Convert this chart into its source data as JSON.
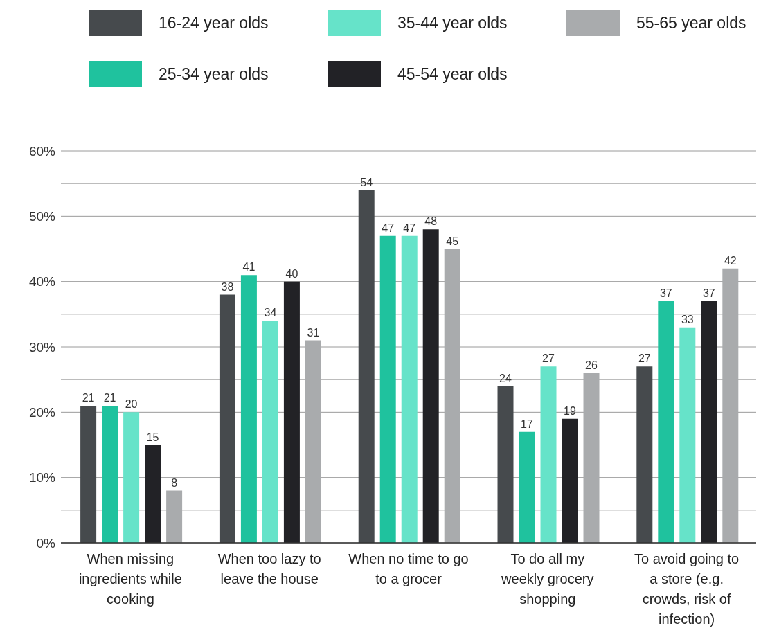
{
  "chart_data": {
    "type": "bar",
    "categories": [
      "When missing ingredients while cooking",
      "When too lazy to leave the house",
      "When no time to go to a grocer",
      "To do all my weekly grocery shopping",
      "To avoid going to a store (e.g. crowds, risk of infection)"
    ],
    "series": [
      {
        "name": "16-24 year olds",
        "color": "#464a4d",
        "values": [
          21,
          38,
          54,
          24,
          27
        ]
      },
      {
        "name": "25-34 year olds",
        "color": "#1fc29e",
        "values": [
          21,
          41,
          47,
          17,
          37
        ]
      },
      {
        "name": "35-44 year olds",
        "color": "#66e3c9",
        "values": [
          20,
          34,
          47,
          27,
          33
        ]
      },
      {
        "name": "45-54 year olds",
        "color": "#222226",
        "values": [
          15,
          40,
          48,
          19,
          37
        ]
      },
      {
        "name": "55-65 year olds",
        "color": "#a9abad",
        "values": [
          8,
          31,
          45,
          26,
          42
        ]
      }
    ],
    "ylim": [
      0,
      60
    ],
    "yticks": [
      {
        "value": 0,
        "label": "0%"
      },
      {
        "value": 5,
        "label": null
      },
      {
        "value": 10,
        "label": "10%"
      },
      {
        "value": 15,
        "label": null
      },
      {
        "value": 20,
        "label": "20%"
      },
      {
        "value": 25,
        "label": null
      },
      {
        "value": 30,
        "label": "30%"
      },
      {
        "value": 35,
        "label": null
      },
      {
        "value": 40,
        "label": "40%"
      },
      {
        "value": 45,
        "label": null
      },
      {
        "value": 50,
        "label": "50%"
      },
      {
        "value": 55,
        "label": null
      },
      {
        "value": 60,
        "label": "60%"
      }
    ],
    "grid": "y",
    "legend": "top",
    "data_labels": true
  }
}
